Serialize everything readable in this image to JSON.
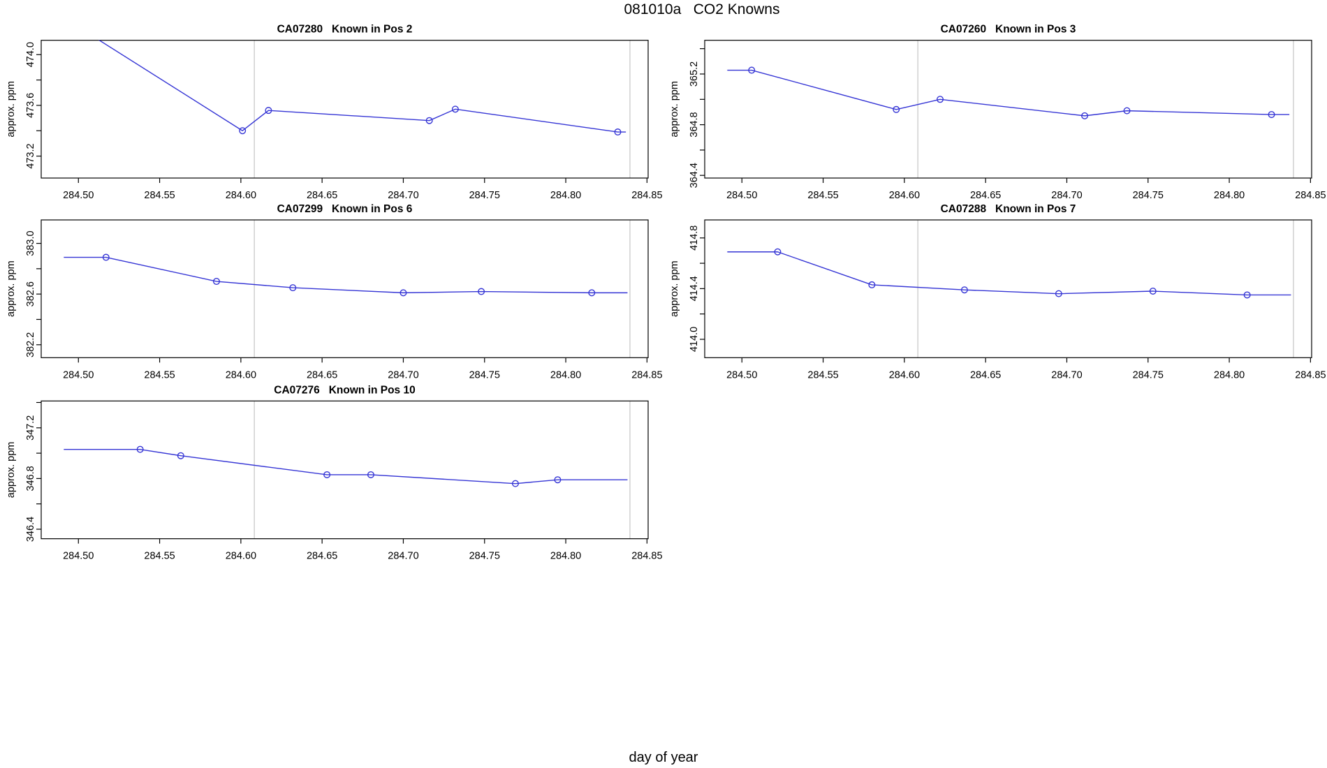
{
  "figure": {
    "title": "081010a   CO2 Knowns",
    "xlabel": "day of year",
    "background": "#ffffff"
  },
  "colors": {
    "line": "#3535d5",
    "axis": "#000000",
    "text": "#000000",
    "event_line": "#d3d3d3"
  },
  "axes_shared": {
    "xlim": [
      284.4771,
      284.8507
    ],
    "xticks": [
      {
        "v": 284.5,
        "label": "284.50"
      },
      {
        "v": 284.55,
        "label": "284.55"
      },
      {
        "v": 284.6,
        "label": "284.60"
      },
      {
        "v": 284.65,
        "label": "284.65"
      },
      {
        "v": 284.7,
        "label": "284.70"
      },
      {
        "v": 284.75,
        "label": "284.75"
      },
      {
        "v": 284.8,
        "label": "284.80"
      },
      {
        "v": 284.85,
        "label": "284.85"
      }
    ],
    "vlines": [
      284.6083,
      284.8395
    ],
    "grid": "off",
    "legend": "none"
  },
  "chart_data": [
    {
      "type": "line",
      "title": "CA07280   Known in Pos 2",
      "ylabel": "approx. ppm",
      "grid_col": 0,
      "grid_row": 0,
      "ylim": [
        473.027,
        474.113
      ],
      "yticks": [
        {
          "v": 473.2,
          "label": "473.2"
        },
        {
          "v": 473.4,
          "label": null
        },
        {
          "v": 473.6,
          "label": "473.6"
        },
        {
          "v": 473.8,
          "label": null
        },
        {
          "v": 474.0,
          "label": "474.0"
        }
      ],
      "line": [
        [
          284.491,
          474.29
        ],
        [
          284.601,
          473.4
        ],
        [
          284.617,
          473.56
        ],
        [
          284.716,
          473.48
        ],
        [
          284.732,
          473.57
        ],
        [
          284.832,
          473.39
        ],
        [
          284.837,
          473.39
        ]
      ],
      "markers": [
        [
          284.601,
          473.4
        ],
        [
          284.617,
          473.56
        ],
        [
          284.716,
          473.48
        ],
        [
          284.732,
          473.57
        ],
        [
          284.832,
          473.39
        ]
      ]
    },
    {
      "type": "line",
      "title": "CA07260   Known in Pos 3",
      "ylabel": "approx. ppm",
      "grid_col": 1,
      "grid_row": 0,
      "ylim": [
        364.379,
        365.466
      ],
      "yticks": [
        {
          "v": 364.4,
          "label": "364.4"
        },
        {
          "v": 364.6,
          "label": null
        },
        {
          "v": 364.8,
          "label": "364.8"
        },
        {
          "v": 365.0,
          "label": null
        },
        {
          "v": 365.2,
          "label": "365.2"
        },
        {
          "v": 365.4,
          "label": null
        }
      ],
      "line": [
        [
          284.491,
          365.23
        ],
        [
          284.506,
          365.23
        ],
        [
          284.595,
          364.92
        ],
        [
          284.622,
          365.0
        ],
        [
          284.711,
          364.87
        ],
        [
          284.737,
          364.91
        ],
        [
          284.826,
          364.88
        ],
        [
          284.837,
          364.88
        ]
      ],
      "markers": [
        [
          284.506,
          365.23
        ],
        [
          284.595,
          364.92
        ],
        [
          284.622,
          365.0
        ],
        [
          284.711,
          364.87
        ],
        [
          284.737,
          364.91
        ],
        [
          284.826,
          364.88
        ]
      ]
    },
    {
      "type": "line",
      "title": "CA07299   Known in Pos 6",
      "ylabel": "approx. ppm",
      "grid_col": 0,
      "grid_row": 1,
      "ylim": [
        382.098,
        383.185
      ],
      "yticks": [
        {
          "v": 382.2,
          "label": "382.2"
        },
        {
          "v": 382.4,
          "label": null
        },
        {
          "v": 382.6,
          "label": "382.6"
        },
        {
          "v": 382.8,
          "label": null
        },
        {
          "v": 383.0,
          "label": "383.0"
        }
      ],
      "line": [
        [
          284.491,
          382.89
        ],
        [
          284.517,
          382.89
        ],
        [
          284.585,
          382.7
        ],
        [
          284.632,
          382.65
        ],
        [
          284.7,
          382.61
        ],
        [
          284.748,
          382.62
        ],
        [
          284.816,
          382.61
        ],
        [
          284.838,
          382.61
        ]
      ],
      "markers": [
        [
          284.517,
          382.89
        ],
        [
          284.585,
          382.7
        ],
        [
          284.632,
          382.65
        ],
        [
          284.7,
          382.61
        ],
        [
          284.748,
          382.62
        ],
        [
          284.816,
          382.61
        ]
      ]
    },
    {
      "type": "line",
      "title": "CA07288   Known in Pos 7",
      "ylabel": "approx. ppm",
      "grid_col": 1,
      "grid_row": 1,
      "ylim": [
        413.855,
        414.942
      ],
      "yticks": [
        {
          "v": 414.0,
          "label": "414.0"
        },
        {
          "v": 414.2,
          "label": null
        },
        {
          "v": 414.4,
          "label": "414.4"
        },
        {
          "v": 414.6,
          "label": null
        },
        {
          "v": 414.8,
          "label": "414.8"
        }
      ],
      "line": [
        [
          284.491,
          414.69
        ],
        [
          284.522,
          414.69
        ],
        [
          284.58,
          414.43
        ],
        [
          284.637,
          414.39
        ],
        [
          284.695,
          414.36
        ],
        [
          284.753,
          414.38
        ],
        [
          284.811,
          414.35
        ],
        [
          284.838,
          414.35
        ]
      ],
      "markers": [
        [
          284.522,
          414.69
        ],
        [
          284.58,
          414.43
        ],
        [
          284.637,
          414.39
        ],
        [
          284.695,
          414.36
        ],
        [
          284.753,
          414.38
        ],
        [
          284.811,
          414.35
        ]
      ]
    },
    {
      "type": "line",
      "title": "CA07276   Known in Pos 10",
      "ylabel": "approx. ppm",
      "grid_col": 0,
      "grid_row": 2,
      "ylim": [
        346.325,
        347.412
      ],
      "yticks": [
        {
          "v": 346.4,
          "label": "346.4"
        },
        {
          "v": 346.6,
          "label": null
        },
        {
          "v": 346.8,
          "label": "346.8"
        },
        {
          "v": 347.0,
          "label": null
        },
        {
          "v": 347.2,
          "label": "347.2"
        },
        {
          "v": 347.4,
          "label": null
        }
      ],
      "line": [
        [
          284.491,
          347.03
        ],
        [
          284.538,
          347.03
        ],
        [
          284.563,
          346.98
        ],
        [
          284.653,
          346.83
        ],
        [
          284.68,
          346.83
        ],
        [
          284.769,
          346.76
        ],
        [
          284.795,
          346.79
        ],
        [
          284.838,
          346.79
        ]
      ],
      "markers": [
        [
          284.538,
          347.03
        ],
        [
          284.563,
          346.98
        ],
        [
          284.653,
          346.83
        ],
        [
          284.68,
          346.83
        ],
        [
          284.769,
          346.76
        ],
        [
          284.795,
          346.79
        ]
      ]
    }
  ]
}
